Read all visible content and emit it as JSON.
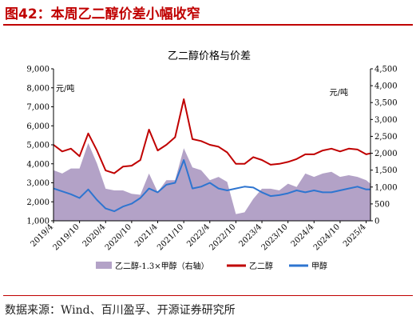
{
  "header": {
    "title": "图42：本周乙二醇价差小幅收窄"
  },
  "footer": {
    "source": "数据来源：Wind、百川盈孚、开源证券研究所"
  },
  "chart_data": {
    "type": "line",
    "title": "乙二醇价格与价差",
    "left_unit": "元/吨",
    "right_unit": "元/吨",
    "left_ylim": [
      1000,
      9000
    ],
    "right_ylim": [
      0,
      4500
    ],
    "left_ticks": [
      "1,000",
      "2,000",
      "3,000",
      "4,000",
      "5,000",
      "6,000",
      "7,000",
      "8,000",
      "9,000"
    ],
    "right_ticks": [
      "0",
      "500",
      "1,000",
      "1,500",
      "2,000",
      "2,500",
      "3,000",
      "3,500",
      "4,000",
      "4,500"
    ],
    "x_labels": [
      "2019/4",
      "2019/10",
      "2020/4",
      "2020/10",
      "2021/4",
      "2021/10",
      "2022/4",
      "2022/10",
      "2023/4",
      "2023/10",
      "2024/4",
      "2024/10",
      "2025/4"
    ],
    "legend": [
      "乙二醇-1.3×甲醇（右轴）",
      "乙二醇",
      "甲醇"
    ],
    "colors": {
      "spread": "#b3a2c7",
      "meg": "#c00000",
      "methanol": "#2e75d0"
    },
    "grid": false,
    "x": [
      "2019-04",
      "2019-06",
      "2019-08",
      "2019-10",
      "2019-12",
      "2020-02",
      "2020-04",
      "2020-06",
      "2020-08",
      "2020-10",
      "2020-12",
      "2021-02",
      "2021-04",
      "2021-06",
      "2021-08",
      "2021-10",
      "2021-12",
      "2022-02",
      "2022-04",
      "2022-06",
      "2022-08",
      "2022-10",
      "2022-12",
      "2023-02",
      "2023-04",
      "2023-06",
      "2023-08",
      "2023-10",
      "2023-12",
      "2024-02",
      "2024-04",
      "2024-06",
      "2024-08",
      "2024-10",
      "2024-12",
      "2025-02",
      "2025-04",
      "2025-05"
    ],
    "series": [
      {
        "name": "乙二醇",
        "axis": "left",
        "values": [
          5000,
          4650,
          4800,
          4400,
          5600,
          4700,
          3650,
          3500,
          3850,
          3900,
          4200,
          5800,
          4700,
          5000,
          5400,
          7400,
          5300,
          5200,
          5000,
          4900,
          4600,
          4000,
          4000,
          4350,
          4200,
          3950,
          4000,
          4100,
          4250,
          4500,
          4500,
          4700,
          4800,
          4650,
          4800,
          4750,
          4500,
          4550
        ]
      },
      {
        "name": "甲醇",
        "axis": "left",
        "values": [
          2700,
          2550,
          2400,
          2200,
          2650,
          2100,
          1650,
          1500,
          1750,
          1900,
          2200,
          2700,
          2500,
          2900,
          3000,
          4200,
          2700,
          2800,
          3000,
          2700,
          2600,
          2700,
          2800,
          2750,
          2500,
          2300,
          2350,
          2450,
          2600,
          2500,
          2600,
          2500,
          2500,
          2600,
          2700,
          2800,
          2650,
          2650
        ]
      },
      {
        "name": "乙二醇-1.3×甲醇（右轴）",
        "axis": "right",
        "values": [
          1500,
          1400,
          1550,
          1550,
          2300,
          1700,
          950,
          900,
          900,
          800,
          770,
          1400,
          850,
          1200,
          1200,
          2150,
          1580,
          1500,
          1200,
          1300,
          1150,
          200,
          250,
          650,
          950,
          950,
          900,
          1100,
          1000,
          1400,
          1300,
          1400,
          1450,
          1300,
          1350,
          1300,
          1200,
          1100
        ]
      }
    ]
  }
}
